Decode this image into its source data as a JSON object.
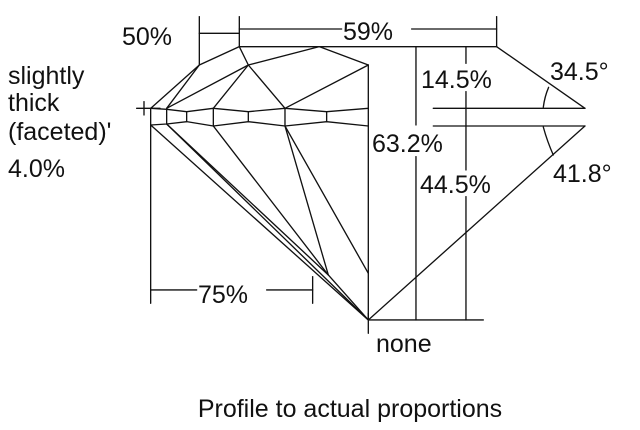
{
  "labels": {
    "crown_width": "50%",
    "table": "59%",
    "girdle_line1": "slightly",
    "girdle_line2": "thick",
    "girdle_line3": "(faceted)'",
    "girdle_value": "4.0%",
    "crown_height": "14.5%",
    "crown_angle": "34.5°",
    "total_depth": "63.2%",
    "pavilion_angle": "41.8°",
    "pavilion_depth": "44.5%",
    "lower_half": "75%",
    "culet": "none"
  },
  "caption": "Profile to actual proportions"
}
